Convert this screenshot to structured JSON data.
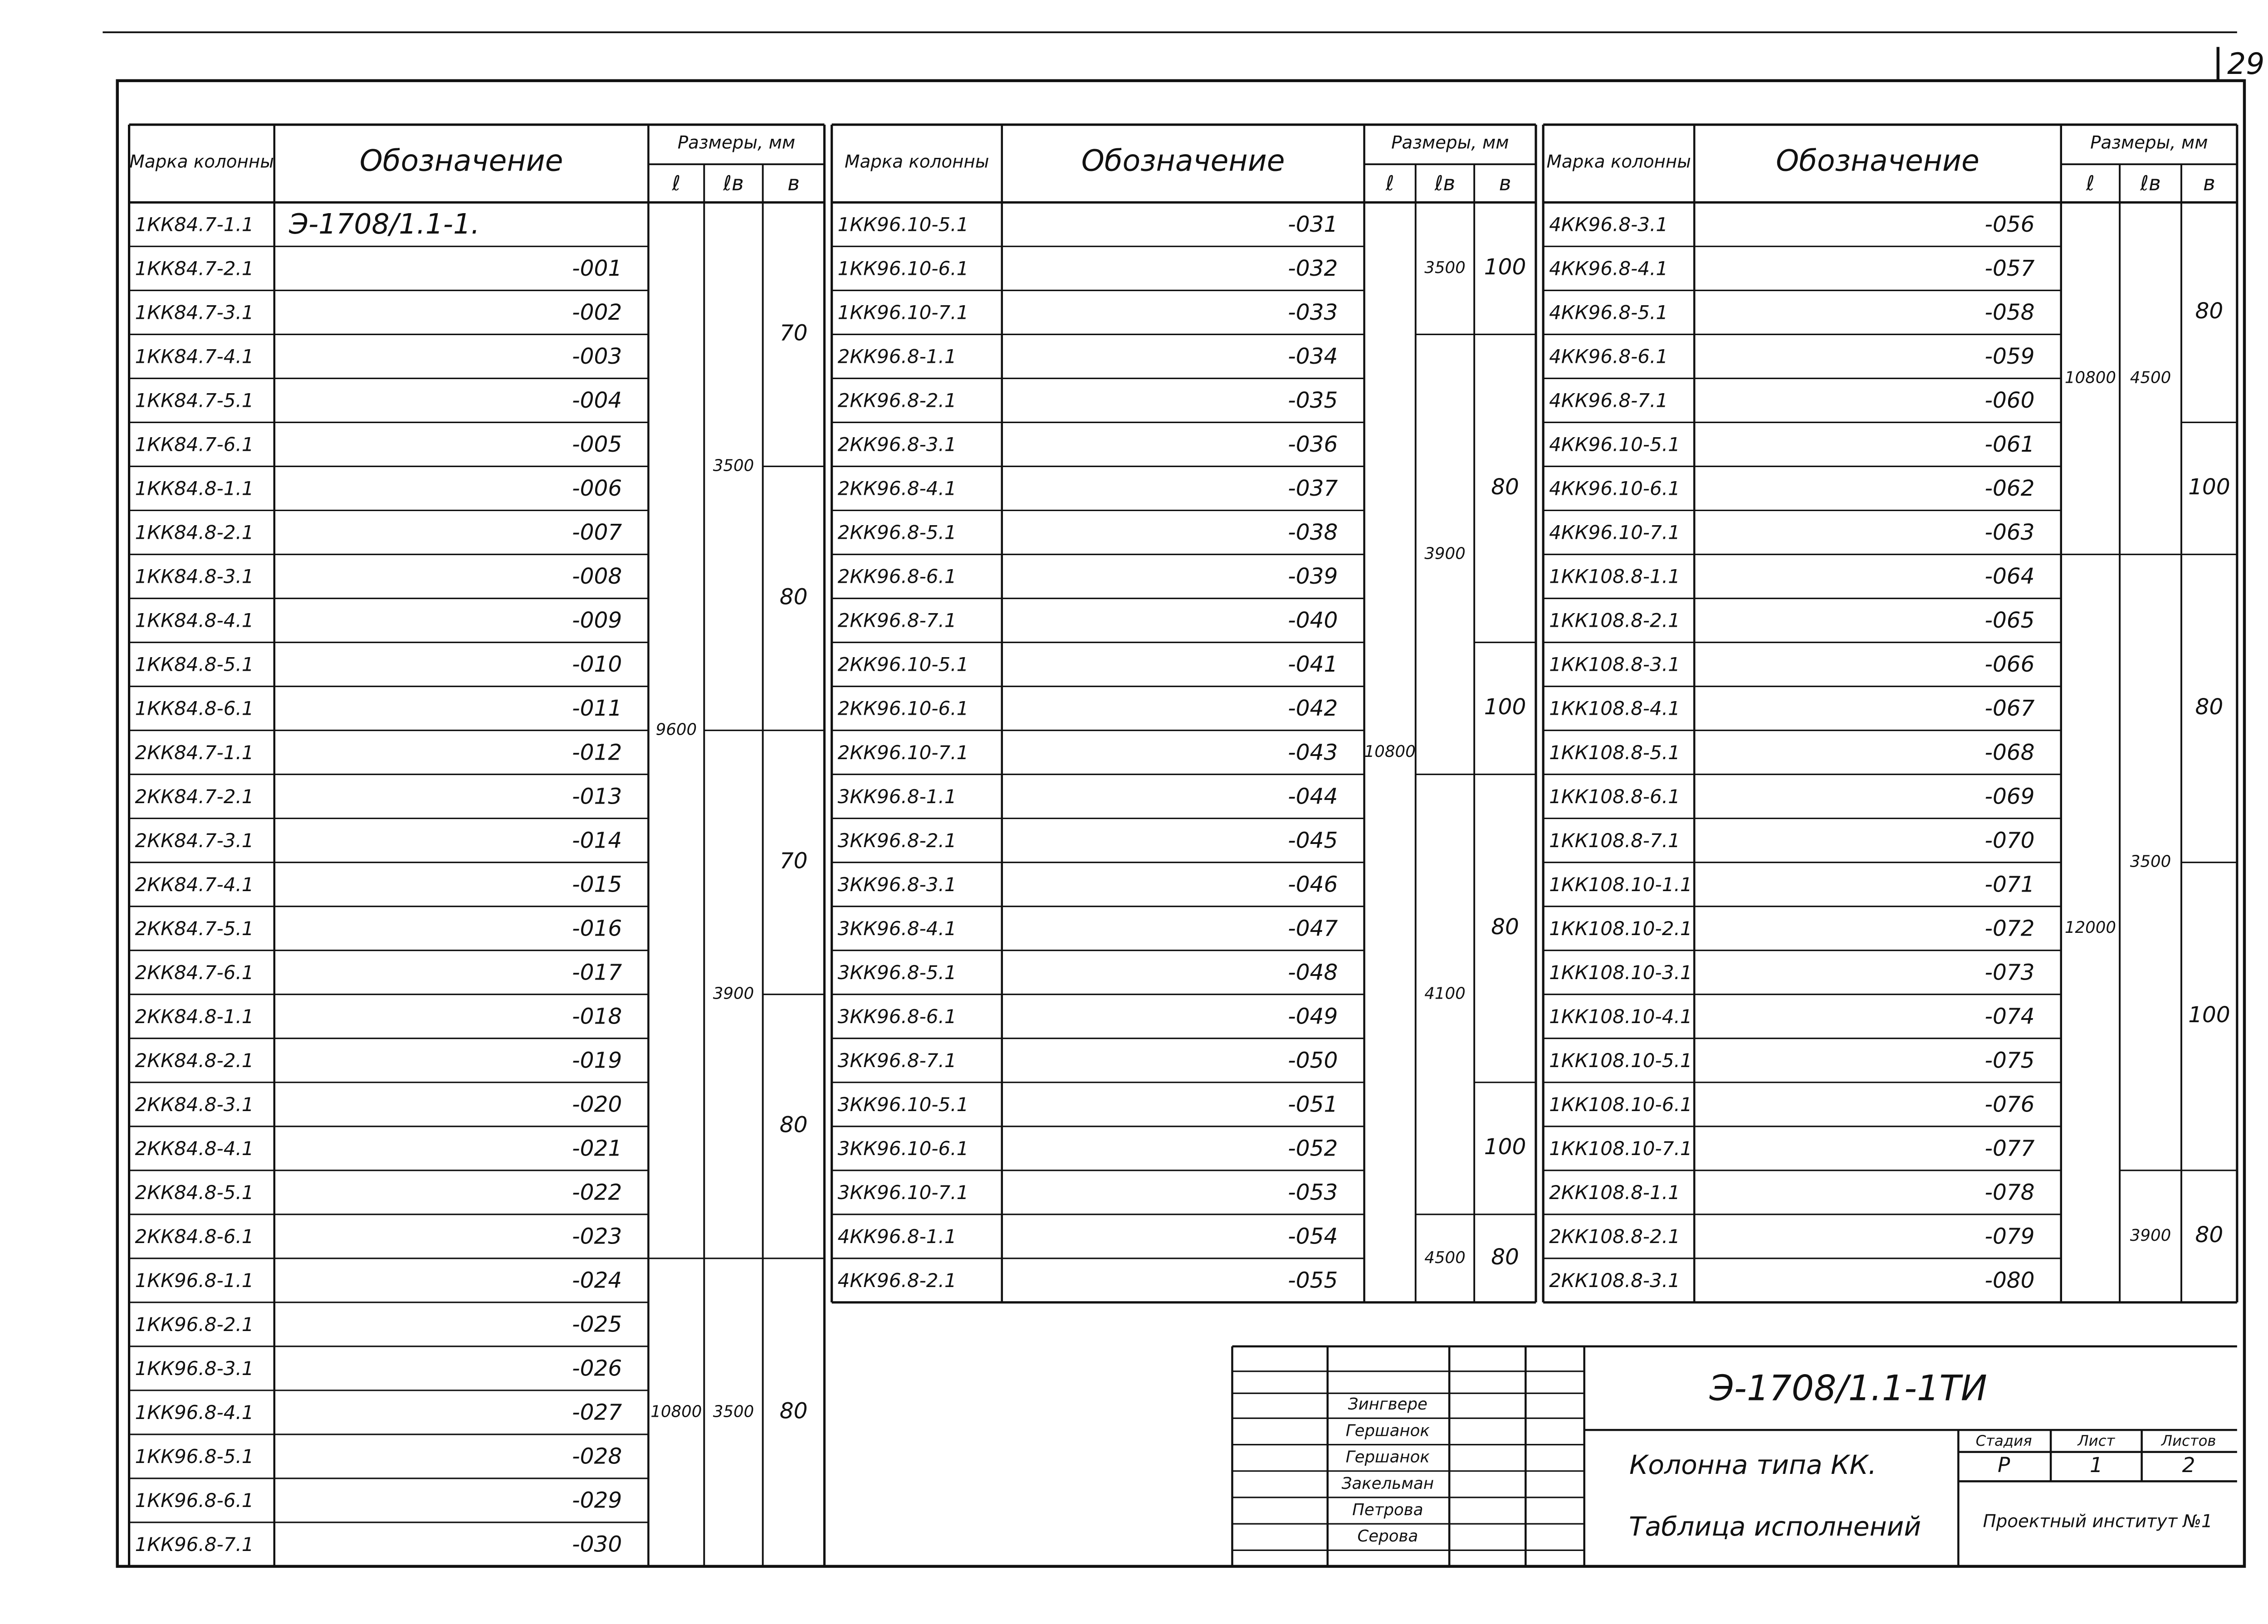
{
  "page_number": "29",
  "headers": {
    "mark": "Марка колонны",
    "designation": "Обозначение",
    "sizes": "Размеры, мм",
    "l": "ℓ",
    "lb": "ℓв",
    "b": "в"
  },
  "tables": [
    {
      "rows": [
        [
          "1КК84.7-1.1",
          "Э-1708/1.1-1."
        ],
        [
          "1КК84.7-2.1",
          "-001"
        ],
        [
          "1КК84.7-3.1",
          "-002"
        ],
        [
          "1КК84.7-4.1",
          "-003"
        ],
        [
          "1КК84.7-5.1",
          "-004"
        ],
        [
          "1КК84.7-6.1",
          "-005"
        ],
        [
          "1КК84.8-1.1",
          "-006"
        ],
        [
          "1КК84.8-2.1",
          "-007"
        ],
        [
          "1КК84.8-3.1",
          "-008"
        ],
        [
          "1КК84.8-4.1",
          "-009"
        ],
        [
          "1КК84.8-5.1",
          "-010"
        ],
        [
          "1КК84.8-6.1",
          "-011"
        ],
        [
          "2КК84.7-1.1",
          "-012"
        ],
        [
          "2КК84.7-2.1",
          "-013"
        ],
        [
          "2КК84.7-3.1",
          "-014"
        ],
        [
          "2КК84.7-4.1",
          "-015"
        ],
        [
          "2КК84.7-5.1",
          "-016"
        ],
        [
          "2КК84.7-6.1",
          "-017"
        ],
        [
          "2КК84.8-1.1",
          "-018"
        ],
        [
          "2КК84.8-2.1",
          "-019"
        ],
        [
          "2КК84.8-3.1",
          "-020"
        ],
        [
          "2КК84.8-4.1",
          "-021"
        ],
        [
          "2КК84.8-5.1",
          "-022"
        ],
        [
          "2КК84.8-6.1",
          "-023"
        ],
        [
          "1КК96.8-1.1",
          "-024"
        ],
        [
          "1КК96.8-2.1",
          "-025"
        ],
        [
          "1КК96.8-3.1",
          "-026"
        ],
        [
          "1КК96.8-4.1",
          "-027"
        ],
        [
          "1КК96.8-5.1",
          "-028"
        ],
        [
          "1КК96.8-6.1",
          "-029"
        ],
        [
          "1КК96.8-7.1",
          "-030"
        ]
      ],
      "l": [
        "9600",
        "10800"
      ],
      "lb": [
        "3500",
        "3900",
        "3500"
      ],
      "b": [
        "70",
        "80",
        "70",
        "80",
        "80"
      ]
    },
    {
      "rows": [
        [
          "1КК96.10-5.1",
          "-031"
        ],
        [
          "1КК96.10-6.1",
          "-032"
        ],
        [
          "1КК96.10-7.1",
          "-033"
        ],
        [
          "2КК96.8-1.1",
          "-034"
        ],
        [
          "2КК96.8-2.1",
          "-035"
        ],
        [
          "2КК96.8-3.1",
          "-036"
        ],
        [
          "2КК96.8-4.1",
          "-037"
        ],
        [
          "2КК96.8-5.1",
          "-038"
        ],
        [
          "2КК96.8-6.1",
          "-039"
        ],
        [
          "2КК96.8-7.1",
          "-040"
        ],
        [
          "2КК96.10-5.1",
          "-041"
        ],
        [
          "2КК96.10-6.1",
          "-042"
        ],
        [
          "2КК96.10-7.1",
          "-043"
        ],
        [
          "3КК96.8-1.1",
          "-044"
        ],
        [
          "3КК96.8-2.1",
          "-045"
        ],
        [
          "3КК96.8-3.1",
          "-046"
        ],
        [
          "3КК96.8-4.1",
          "-047"
        ],
        [
          "3КК96.8-5.1",
          "-048"
        ],
        [
          "3КК96.8-6.1",
          "-049"
        ],
        [
          "3КК96.8-7.1",
          "-050"
        ],
        [
          "3КК96.10-5.1",
          "-051"
        ],
        [
          "3КК96.10-6.1",
          "-052"
        ],
        [
          "3КК96.10-7.1",
          "-053"
        ],
        [
          "4КК96.8-1.1",
          "-054"
        ],
        [
          "4КК96.8-2.1",
          "-055"
        ]
      ],
      "l": [
        "10800"
      ],
      "lb": [
        "3500",
        "3900",
        "4100",
        "4500"
      ],
      "b": [
        "100",
        "80",
        "100",
        "80",
        "100",
        "80"
      ]
    },
    {
      "rows": [
        [
          "4КК96.8-3.1",
          "-056"
        ],
        [
          "4КК96.8-4.1",
          "-057"
        ],
        [
          "4КК96.8-5.1",
          "-058"
        ],
        [
          "4КК96.8-6.1",
          "-059"
        ],
        [
          "4КК96.8-7.1",
          "-060"
        ],
        [
          "4КК96.10-5.1",
          "-061"
        ],
        [
          "4КК96.10-6.1",
          "-062"
        ],
        [
          "4КК96.10-7.1",
          "-063"
        ],
        [
          "1КК108.8-1.1",
          "-064"
        ],
        [
          "1КК108.8-2.1",
          "-065"
        ],
        [
          "1КК108.8-3.1",
          "-066"
        ],
        [
          "1КК108.8-4.1",
          "-067"
        ],
        [
          "1КК108.8-5.1",
          "-068"
        ],
        [
          "1КК108.8-6.1",
          "-069"
        ],
        [
          "1КК108.8-7.1",
          "-070"
        ],
        [
          "1КК108.10-1.1",
          "-071"
        ],
        [
          "1КК108.10-2.1",
          "-072"
        ],
        [
          "1КК108.10-3.1",
          "-073"
        ],
        [
          "1КК108.10-4.1",
          "-074"
        ],
        [
          "1КК108.10-5.1",
          "-075"
        ],
        [
          "1КК108.10-6.1",
          "-076"
        ],
        [
          "1КК108.10-7.1",
          "-077"
        ],
        [
          "2КК108.8-1.1",
          "-078"
        ],
        [
          "2КК108.8-2.1",
          "-079"
        ],
        [
          "2КК108.8-3.1",
          "-080"
        ]
      ],
      "l": [
        "10800",
        "12000"
      ],
      "lb": [
        "4500",
        "3500",
        "3900"
      ],
      "b": [
        "80",
        "100",
        "80",
        "100",
        "80"
      ]
    }
  ],
  "title_block": {
    "code": "Э-1708/1.1-1ТИ",
    "name_1": "Колонна типа КК.",
    "name_2": "Таблица исполнений",
    "stage_header": "Стадия",
    "sheet_header": "Лист",
    "sheets_header": "Листов",
    "stage": "Р",
    "sheet": "1",
    "sheets": "2",
    "organization": "Проектный институт №1",
    "signatures": [
      "Зингвере",
      "Гершанок",
      "Гершанок",
      "Закельман",
      "Петрова",
      "Серова"
    ]
  }
}
